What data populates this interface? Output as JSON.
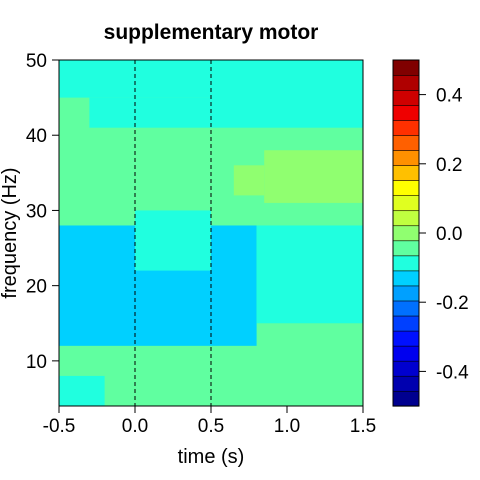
{
  "chart_data": {
    "type": "heatmap",
    "title": "supplementary motor",
    "xlabel": "time (s)",
    "ylabel": "frequency (Hz)",
    "xlim": [
      -0.5,
      1.5
    ],
    "ylim": [
      4,
      50
    ],
    "x_ticks": [
      -0.5,
      0.0,
      0.5,
      1.0,
      1.5
    ],
    "x_tick_labels": [
      "-0.5",
      "0.0",
      "0.5",
      "1.0",
      "1.5"
    ],
    "y_ticks": [
      10,
      20,
      30,
      40,
      50
    ],
    "y_tick_labels": [
      "10",
      "20",
      "30",
      "40",
      "50"
    ],
    "event_lines_x": [
      0.0,
      0.5
    ],
    "regions": [
      {
        "t": [
          -0.5,
          1.5
        ],
        "f": [
          4,
          50
        ],
        "value": 0.02
      },
      {
        "t": [
          -0.5,
          1.5
        ],
        "f": [
          45,
          50
        ],
        "value": -0.03
      },
      {
        "t": [
          -0.3,
          0.5
        ],
        "f": [
          41,
          45
        ],
        "value": -0.04
      },
      {
        "t": [
          0.5,
          1.5
        ],
        "f": [
          41,
          46
        ],
        "value": -0.05
      },
      {
        "t": [
          -0.5,
          0.8
        ],
        "f": [
          12,
          28
        ],
        "value": -0.06
      },
      {
        "t": [
          0.8,
          1.5
        ],
        "f": [
          15,
          28
        ],
        "value": -0.05
      },
      {
        "t": [
          -0.5,
          -0.2
        ],
        "f": [
          4,
          8
        ],
        "value": -0.04
      },
      {
        "t": [
          0.0,
          0.5
        ],
        "f": [
          22,
          30
        ],
        "value": -0.04
      },
      {
        "t": [
          0.65,
          0.85
        ],
        "f": [
          32,
          36
        ],
        "value": 0.06
      },
      {
        "t": [
          0.85,
          1.5
        ],
        "f": [
          31,
          38
        ],
        "value": 0.08
      }
    ],
    "colorbar": {
      "min": -0.5,
      "max": 0.5,
      "step": 0.05,
      "ticks": [
        -0.4,
        -0.2,
        0.0,
        0.2,
        0.4
      ],
      "tick_labels": [
        "-0.4",
        "-0.2",
        "0.0",
        "0.2",
        "0.4"
      ],
      "colors": [
        "#00008F",
        "#0000AF",
        "#0000CF",
        "#0000EF",
        "#0010FF",
        "#0040FF",
        "#0070FF",
        "#00A0FF",
        "#00D0FF",
        "#20FFDF",
        "#60FFA0",
        "#90FF70",
        "#C0FF40",
        "#E0FF20",
        "#FFFF00",
        "#FFC000",
        "#FF9000",
        "#FF6000",
        "#FF3000",
        "#EF0000",
        "#CF0000",
        "#AF0000",
        "#800000"
      ]
    }
  }
}
